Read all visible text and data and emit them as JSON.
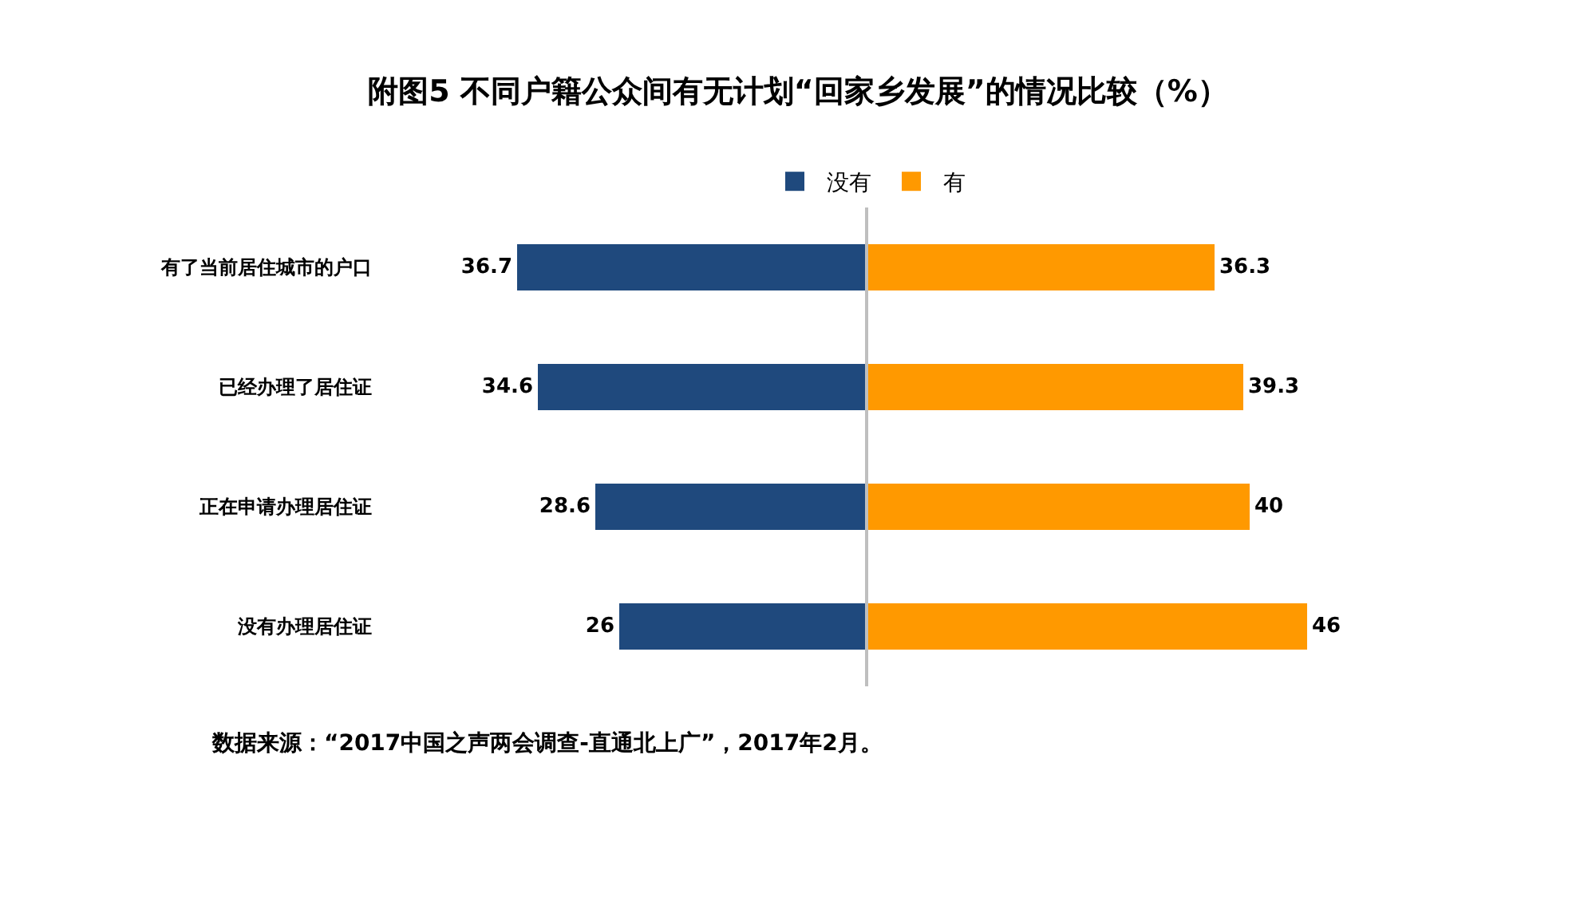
{
  "chart_data": [
    {
      "type": "bar",
      "orientation": "horizontal",
      "title": "附图5 不同户籍公众间有无计划“回家乡发展”的情况比较（%）",
      "categories": [
        "有了当前居住城市的户口",
        "已经办理了居住证",
        "正在申请办理居住证",
        "没有办理居住证"
      ],
      "series": [
        {
          "name": "没有",
          "color": "#1f497d",
          "values": [
            36.7,
            34.6,
            28.6,
            26
          ]
        }
      ],
      "data_labels": true,
      "legend": "top",
      "tick_labels": "y",
      "annotations": [
        "数据来源：“2017中国之声两会调查-直通北上广”，2017年2月。"
      ]
    },
    {
      "type": "bar",
      "orientation": "horizontal",
      "categories": [
        "有了当前居住城市的户口",
        "已经办理了居住证",
        "正在申请办理居住证",
        "没有办理居住证"
      ],
      "series": [
        {
          "name": "有",
          "color": "#ff9900",
          "values": [
            36.3,
            39.3,
            40,
            46
          ]
        }
      ],
      "data_labels": true,
      "legend": "top",
      "tick_labels": false
    }
  ]
}
